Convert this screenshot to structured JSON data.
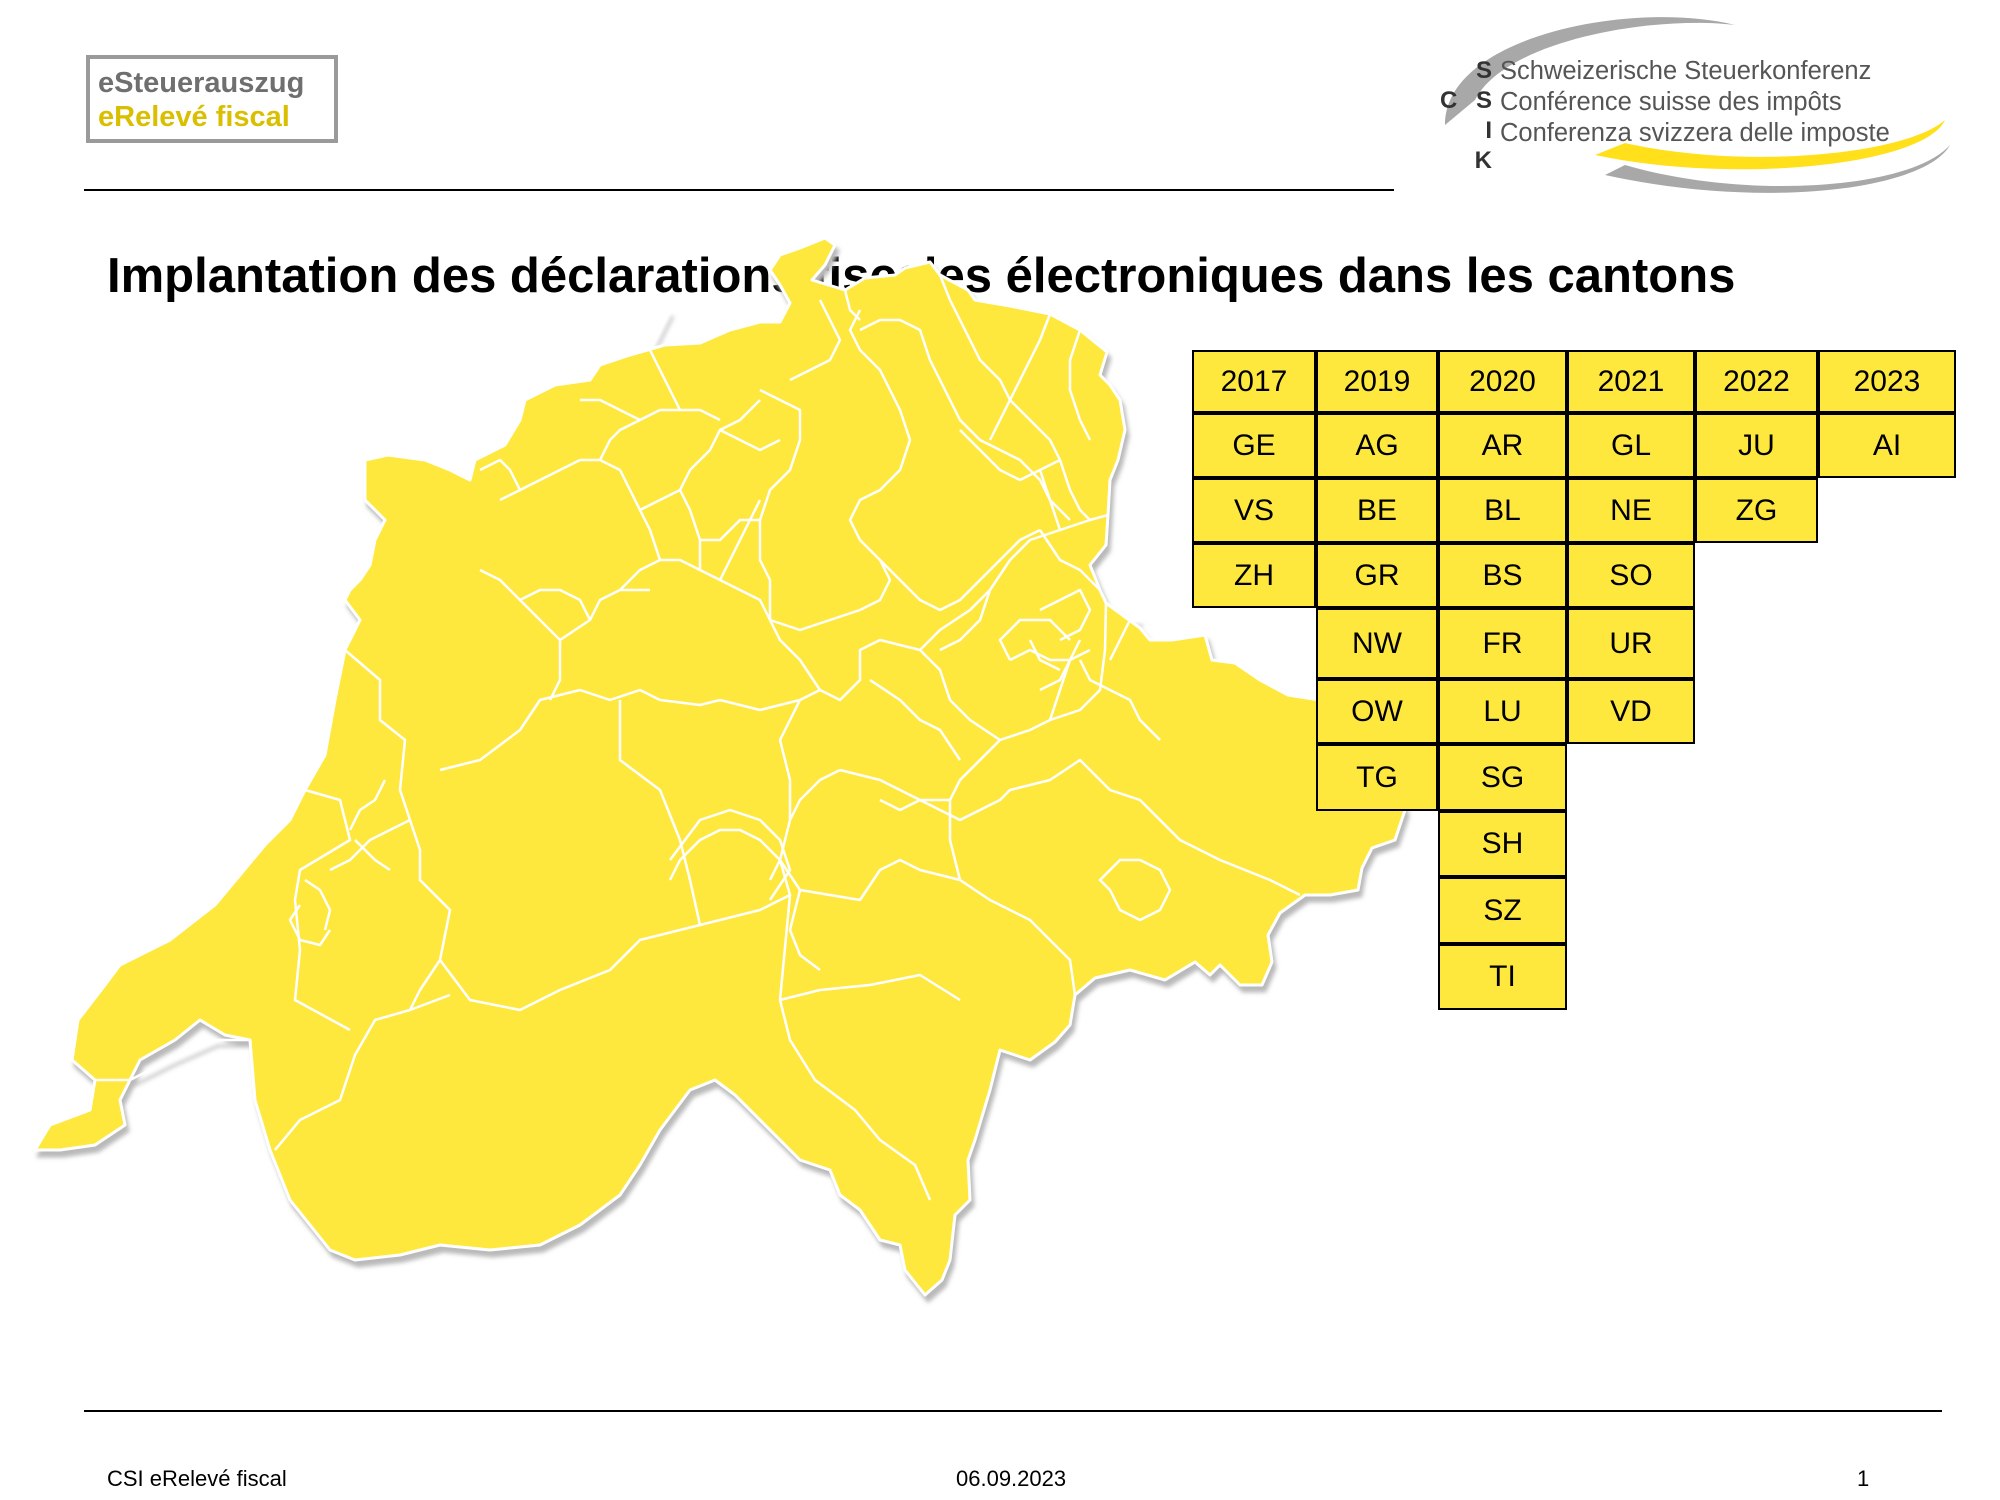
{
  "header": {
    "logo_left": {
      "line1": "eSteuerauszug",
      "line2": "eRelevé fiscal"
    },
    "logo_right": {
      "letters": [
        "S",
        "C S I",
        "K"
      ],
      "lines": [
        "Schweizerische Steuerkonferenz",
        "Conférence suisse des impôts",
        "Conferenza svizzera delle imposte"
      ]
    }
  },
  "title": "Implantation des déclarations fiscales électroniques dans les cantons",
  "colors": {
    "map_fill": "#ffe83d",
    "map_border": "#ffffff",
    "shadow": "#b9b9b9",
    "table_fill": "#ffe83d"
  },
  "table": {
    "columns": [
      {
        "year": "2017",
        "cantons": [
          "GE",
          "VS",
          "ZH"
        ]
      },
      {
        "year": "2019",
        "cantons": [
          "AG",
          "BE",
          "GR",
          "NW",
          "OW",
          "TG"
        ]
      },
      {
        "year": "2020",
        "cantons": [
          "AR",
          "BL",
          "BS",
          "FR",
          "LU",
          "SG",
          "SH",
          "SZ",
          "TI"
        ]
      },
      {
        "year": "2021",
        "cantons": [
          "GL",
          "NE",
          "SO",
          "UR",
          "VD"
        ]
      },
      {
        "year": "2022",
        "cantons": [
          "JU",
          "ZG"
        ]
      },
      {
        "year": "2023",
        "cantons": [
          "AI"
        ]
      }
    ]
  },
  "footer": {
    "left": "CSI eRelevé fiscal",
    "center": "06.09.2023",
    "right": "1"
  }
}
